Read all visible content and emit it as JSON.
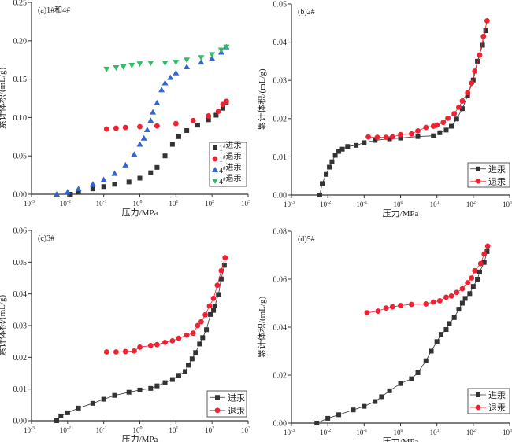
{
  "colors": {
    "intrusion": "#333333",
    "extrusion": "#ee2233",
    "intrusion_4": "#3366cc",
    "extrusion_4": "#33bb66",
    "axis": "#333333"
  },
  "chart_data": [
    {
      "type": "scatter",
      "title": "(a)1#和4#",
      "xlabel": "压力/MPa",
      "ylabel": "累计体积/(mL/g)",
      "xscale": "log",
      "xlim": [
        0.001,
        1000
      ],
      "ylim": [
        0,
        0.25
      ],
      "yticks": [
        "0.00",
        "0.05",
        "0.10",
        "0.15",
        "0.20",
        "0.25"
      ],
      "xticks": [
        {
          "base": "10",
          "exp": "-3"
        },
        {
          "base": "10",
          "exp": "-2"
        },
        {
          "base": "10",
          "exp": "-1"
        },
        {
          "base": "10",
          "exp": "0"
        },
        {
          "base": "10",
          "exp": "1"
        },
        {
          "base": "10",
          "exp": "2"
        },
        {
          "base": "10",
          "exp": "3"
        }
      ],
      "legend": "bottom-right",
      "lines": false,
      "series": [
        {
          "name": "1#进汞",
          "marker": "square",
          "color": "#333333",
          "x": [
            0.012,
            0.02,
            0.05,
            0.1,
            0.2,
            0.5,
            1,
            2,
            3,
            5,
            8,
            12,
            20,
            40,
            80,
            130,
            200,
            250
          ],
          "y": [
            0,
            0.003,
            0.007,
            0.01,
            0.013,
            0.016,
            0.021,
            0.028,
            0.035,
            0.05,
            0.065,
            0.075,
            0.083,
            0.09,
            0.097,
            0.103,
            0.112,
            0.12
          ]
        },
        {
          "name": "1#退汞",
          "marker": "circle",
          "color": "#ee2233",
          "x": [
            0.12,
            0.22,
            0.4,
            1,
            3,
            10,
            30,
            80,
            150,
            200,
            250
          ],
          "y": [
            0.085,
            0.086,
            0.087,
            0.088,
            0.089,
            0.092,
            0.096,
            0.102,
            0.108,
            0.117,
            0.121
          ]
        },
        {
          "name": "4#进汞",
          "marker": "triangle-up",
          "color": "#3366cc",
          "x": [
            0.005,
            0.01,
            0.02,
            0.05,
            0.1,
            0.2,
            0.4,
            0.7,
            1,
            1.3,
            1.6,
            2,
            2.3,
            3,
            4,
            5,
            7,
            10,
            20,
            50,
            100,
            180,
            250
          ],
          "y": [
            0,
            0.003,
            0.007,
            0.013,
            0.019,
            0.027,
            0.038,
            0.052,
            0.065,
            0.073,
            0.084,
            0.096,
            0.107,
            0.119,
            0.136,
            0.145,
            0.152,
            0.158,
            0.166,
            0.172,
            0.177,
            0.185,
            0.192
          ]
        },
        {
          "name": "4#退汞",
          "marker": "triangle-down",
          "color": "#33bb66",
          "x": [
            0.12,
            0.22,
            0.35,
            0.6,
            1,
            2,
            5,
            10,
            20,
            50,
            100,
            180,
            250
          ],
          "y": [
            0.163,
            0.165,
            0.166,
            0.168,
            0.17,
            0.171,
            0.171,
            0.172,
            0.175,
            0.178,
            0.182,
            0.188,
            0.192
          ]
        }
      ]
    },
    {
      "type": "line",
      "title": "(b)2#",
      "xlabel": "压力/MPa",
      "ylabel": "累计体积/(mL/g)",
      "xscale": "log",
      "xlim": [
        0.001,
        1000
      ],
      "ylim": [
        0,
        0.05
      ],
      "yticks": [
        "0.00",
        "0.01",
        "0.02",
        "0.03",
        "0.04",
        "0.05"
      ],
      "xticks": [
        {
          "base": "10",
          "exp": "-3"
        },
        {
          "base": "10",
          "exp": "-2"
        },
        {
          "base": "10",
          "exp": "-1"
        },
        {
          "base": "10",
          "exp": "0"
        },
        {
          "base": "10",
          "exp": "1"
        },
        {
          "base": "10",
          "exp": "2"
        },
        {
          "base": "10",
          "exp": "3"
        }
      ],
      "legend": "bottom-right",
      "lines": true,
      "series": [
        {
          "name": "进汞",
          "marker": "square",
          "color": "#333333",
          "x": [
            0.006,
            0.007,
            0.009,
            0.011,
            0.013,
            0.016,
            0.02,
            0.025,
            0.035,
            0.06,
            0.1,
            0.2,
            0.5,
            1,
            3,
            8,
            12,
            18,
            25,
            35,
            50,
            70,
            100,
            130,
            180,
            220
          ],
          "y": [
            0,
            0.003,
            0.0054,
            0.0073,
            0.0087,
            0.0104,
            0.0114,
            0.012,
            0.0127,
            0.013,
            0.0137,
            0.0143,
            0.0147,
            0.0149,
            0.0153,
            0.0155,
            0.0163,
            0.017,
            0.018,
            0.0199,
            0.0226,
            0.026,
            0.0301,
            0.035,
            0.0392,
            0.043
          ]
        },
        {
          "name": "退汞",
          "marker": "circle",
          "color": "#ee2233",
          "x": [
            0.13,
            0.23,
            0.4,
            0.6,
            1,
            2,
            3,
            5,
            8,
            10,
            15,
            20,
            30,
            40,
            50,
            70,
            90,
            110,
            150,
            190,
            240
          ],
          "y": [
            0.0152,
            0.0151,
            0.0151,
            0.0152,
            0.0158,
            0.016,
            0.0168,
            0.0177,
            0.018,
            0.0183,
            0.019,
            0.0201,
            0.0213,
            0.023,
            0.0246,
            0.0268,
            0.0293,
            0.0324,
            0.0366,
            0.0415,
            0.0456
          ]
        }
      ]
    },
    {
      "type": "line",
      "title": "(c)3#",
      "xlabel": "压力/MPa",
      "ylabel": "累计体积/(mL/g)",
      "xscale": "log",
      "xlim": [
        0.001,
        1000
      ],
      "ylim": [
        0,
        0.06
      ],
      "yticks": [
        "0.00",
        "0.01",
        "0.02",
        "0.03",
        "0.04",
        "0.05",
        "0.06"
      ],
      "xticks": [
        {
          "base": "10",
          "exp": "-3"
        },
        {
          "base": "10",
          "exp": "-2"
        },
        {
          "base": "10",
          "exp": "-1"
        },
        {
          "base": "10",
          "exp": "0"
        },
        {
          "base": "10",
          "exp": "1"
        },
        {
          "base": "10",
          "exp": "2"
        },
        {
          "base": "10",
          "exp": "3"
        }
      ],
      "legend": "bottom-right",
      "lines": true,
      "series": [
        {
          "name": "进汞",
          "marker": "square",
          "color": "#333333",
          "x": [
            0.005,
            0.0065,
            0.01,
            0.02,
            0.05,
            0.1,
            0.2,
            0.5,
            1,
            2,
            3,
            5,
            8,
            12,
            18,
            22,
            28,
            35,
            45,
            55,
            70,
            90,
            110,
            120,
            150,
            180,
            220
          ],
          "y": [
            0,
            0.0015,
            0.0025,
            0.004,
            0.0055,
            0.0068,
            0.008,
            0.009,
            0.0097,
            0.0102,
            0.011,
            0.012,
            0.013,
            0.0143,
            0.0155,
            0.0175,
            0.0195,
            0.0215,
            0.0242,
            0.0262,
            0.0287,
            0.0335,
            0.0348,
            0.0362,
            0.0398,
            0.0447,
            0.049
          ]
        },
        {
          "name": "退汞",
          "marker": "circle",
          "color": "#ee2233",
          "x": [
            0.12,
            0.22,
            0.4,
            0.7,
            1,
            2,
            3,
            5,
            8,
            12,
            20,
            30,
            40,
            50,
            65,
            85,
            110,
            140,
            180,
            230
          ],
          "y": [
            0.0217,
            0.0217,
            0.0218,
            0.022,
            0.0232,
            0.0237,
            0.024,
            0.0247,
            0.0252,
            0.026,
            0.027,
            0.0276,
            0.03,
            0.0312,
            0.0334,
            0.0362,
            0.0386,
            0.0427,
            0.0473,
            0.0514
          ]
        }
      ]
    },
    {
      "type": "line",
      "title": "(d)5#",
      "xlabel": "压力/MPa",
      "ylabel": "累计体积/(mL/g)",
      "xscale": "log",
      "xlim": [
        0.001,
        1000
      ],
      "ylim": [
        0,
        0.08
      ],
      "yticks": [
        "0.00",
        "0.02",
        "0.04",
        "0.06",
        "0.08"
      ],
      "xticks": [
        {
          "base": "10",
          "exp": "-3"
        },
        {
          "base": "10",
          "exp": "-2"
        },
        {
          "base": "10",
          "exp": "-1"
        },
        {
          "base": "10",
          "exp": "0"
        },
        {
          "base": "10",
          "exp": "1"
        },
        {
          "base": "10",
          "exp": "2"
        },
        {
          "base": "10",
          "exp": "3"
        }
      ],
      "legend": "bottom-right",
      "lines": true,
      "series": [
        {
          "name": "进汞",
          "marker": "square",
          "color": "#333333",
          "x": [
            0.005,
            0.01,
            0.02,
            0.05,
            0.1,
            0.2,
            0.3,
            0.5,
            1,
            2,
            3,
            5,
            7,
            10,
            13,
            18,
            22,
            30,
            40,
            50,
            60,
            80,
            100,
            130,
            150,
            200,
            240
          ],
          "y": [
            0,
            0.002,
            0.0035,
            0.0055,
            0.007,
            0.009,
            0.011,
            0.0135,
            0.0165,
            0.0185,
            0.021,
            0.026,
            0.03,
            0.034,
            0.037,
            0.039,
            0.0415,
            0.044,
            0.0475,
            0.05,
            0.052,
            0.054,
            0.057,
            0.06,
            0.063,
            0.067,
            0.0715
          ]
        },
        {
          "name": "退汞",
          "marker": "circle",
          "color": "#ee2233",
          "x": [
            0.12,
            0.24,
            0.4,
            0.6,
            1,
            2,
            5,
            8,
            12,
            18,
            25,
            35,
            50,
            70,
            90,
            110,
            160,
            200,
            250
          ],
          "y": [
            0.046,
            0.0467,
            0.048,
            0.0485,
            0.049,
            0.0495,
            0.0497,
            0.0505,
            0.051,
            0.0525,
            0.053,
            0.0545,
            0.056,
            0.0585,
            0.0605,
            0.0635,
            0.0665,
            0.0705,
            0.0738
          ]
        }
      ]
    }
  ]
}
